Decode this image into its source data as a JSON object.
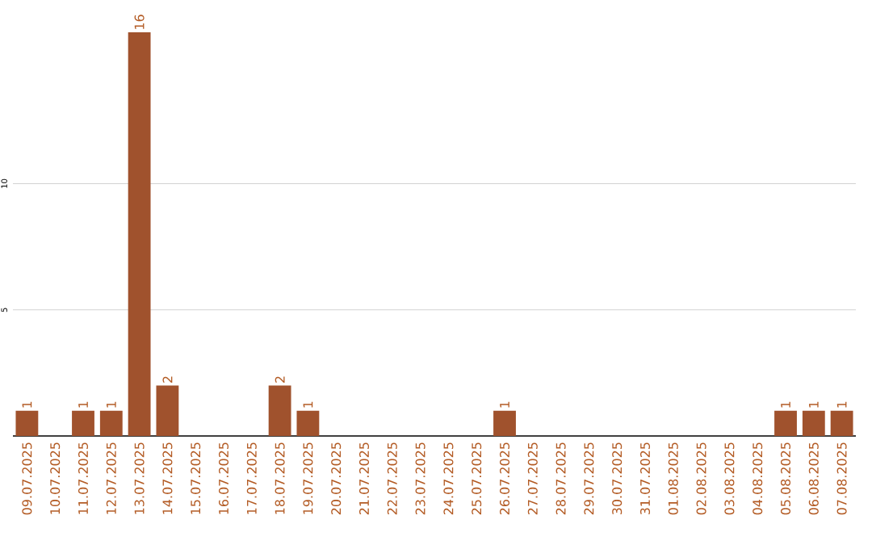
{
  "chart_data": {
    "type": "bar",
    "categories": [
      "09.07.2025",
      "10.07.2025",
      "11.07.2025",
      "12.07.2025",
      "13.07.2025",
      "14.07.2025",
      "15.07.2025",
      "16.07.2025",
      "17.07.2025",
      "18.07.2025",
      "19.07.2025",
      "20.07.2025",
      "21.07.2025",
      "22.07.2025",
      "23.07.2025",
      "24.07.2025",
      "25.07.2025",
      "26.07.2025",
      "27.07.2025",
      "28.07.2025",
      "29.07.2025",
      "30.07.2025",
      "31.07.2025",
      "01.08.2025",
      "02.08.2025",
      "03.08.2025",
      "04.08.2025",
      "05.08.2025",
      "06.08.2025",
      "07.08.2025"
    ],
    "values": [
      1,
      0,
      1,
      1,
      16,
      2,
      0,
      0,
      0,
      2,
      1,
      0,
      0,
      0,
      0,
      0,
      0,
      1,
      0,
      0,
      0,
      0,
      0,
      0,
      0,
      0,
      0,
      1,
      1,
      1
    ],
    "value_labels": [
      "1",
      null,
      "1",
      "1",
      "16",
      "2",
      null,
      null,
      null,
      "2",
      "1",
      null,
      null,
      null,
      null,
      null,
      null,
      "1",
      null,
      null,
      null,
      null,
      null,
      null,
      null,
      null,
      null,
      "1",
      "1",
      "1"
    ],
    "color": "#a0522d",
    "ylim": [
      0,
      16
    ],
    "yticks": [
      5,
      10
    ],
    "grid": "y"
  }
}
